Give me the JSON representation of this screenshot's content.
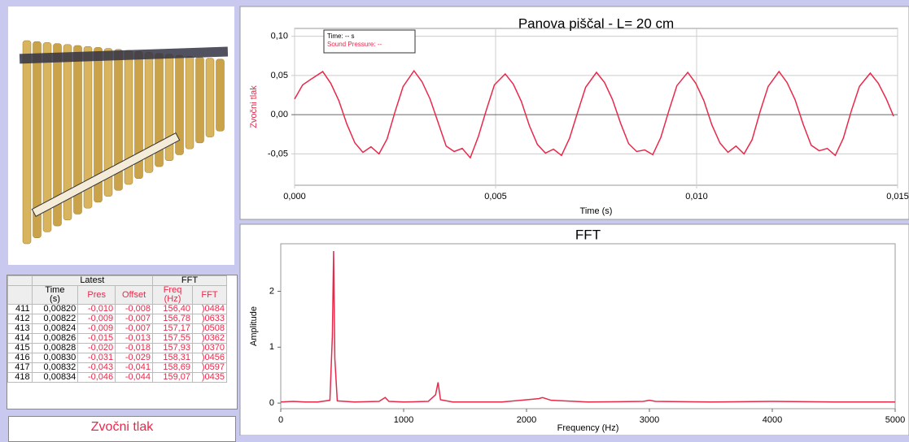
{
  "chart_data": [
    {
      "type": "line",
      "title": "Panova piščal - L= 20 cm",
      "x_label": "Time (s)",
      "y_label": "Zvočni tlak",
      "readout": [
        "Time: -- s",
        "Sound Pressure: --"
      ],
      "color": "#e8294a",
      "grid": true,
      "xlim": [
        0,
        0.015
      ],
      "xticks": [
        {
          "value": 0,
          "label": "0,000"
        },
        {
          "value": 0.005,
          "label": "0,005"
        },
        {
          "value": 0.01,
          "label": "0,010"
        },
        {
          "value": 0.015,
          "label": "0,015"
        }
      ],
      "ylim": [
        -0.09,
        0.11
      ],
      "yticks": [
        {
          "value": -0.05,
          "label": "-0,05"
        },
        {
          "value": 0,
          "label": "0,00"
        },
        {
          "value": 0.05,
          "label": "0,05"
        },
        {
          "value": 0.1,
          "label": "0,10"
        }
      ],
      "x": [
        0,
        0.0002,
        0.0004,
        0.0007,
        0.0009,
        0.0011,
        0.0013,
        0.0015,
        0.0017,
        0.0019,
        0.0021,
        0.0023,
        0.0025,
        0.0027,
        0.00297,
        0.00317,
        0.00337,
        0.00357,
        0.00377,
        0.00397,
        0.00417,
        0.00437,
        0.00457,
        0.00477,
        0.00497,
        0.00524,
        0.00544,
        0.00564,
        0.00584,
        0.00604,
        0.00624,
        0.00644,
        0.00664,
        0.00684,
        0.00704,
        0.00724,
        0.00751,
        0.00771,
        0.00791,
        0.00811,
        0.00831,
        0.00851,
        0.00871,
        0.00891,
        0.00911,
        0.00931,
        0.00951,
        0.00978,
        0.00998,
        0.01018,
        0.01038,
        0.01058,
        0.01078,
        0.01098,
        0.01118,
        0.01138,
        0.01158,
        0.01178,
        0.01205,
        0.01225,
        0.01245,
        0.01265,
        0.01285,
        0.01305,
        0.01325,
        0.01345,
        0.01365,
        0.01385,
        0.01405,
        0.01432,
        0.01452,
        0.01472,
        0.0149
      ],
      "values": [
        0.02,
        0.038,
        0.045,
        0.055,
        0.04,
        0.018,
        -0.012,
        -0.036,
        -0.048,
        -0.041,
        -0.05,
        -0.031,
        0.004,
        0.036,
        0.056,
        0.042,
        0.02,
        -0.01,
        -0.04,
        -0.047,
        -0.043,
        -0.055,
        -0.028,
        0.006,
        0.038,
        0.052,
        0.039,
        0.017,
        -0.014,
        -0.038,
        -0.049,
        -0.044,
        -0.052,
        -0.03,
        0.003,
        0.035,
        0.054,
        0.041,
        0.019,
        -0.011,
        -0.037,
        -0.047,
        -0.045,
        -0.051,
        -0.029,
        0.005,
        0.037,
        0.054,
        0.04,
        0.018,
        -0.013,
        -0.036,
        -0.048,
        -0.04,
        -0.05,
        -0.032,
        0.004,
        0.036,
        0.055,
        0.041,
        0.019,
        -0.012,
        -0.039,
        -0.046,
        -0.043,
        -0.052,
        -0.03,
        0.005,
        0.036,
        0.053,
        0.04,
        0.02,
        -0.002
      ]
    },
    {
      "type": "line",
      "title": "FFT",
      "x_label": "Frequency (Hz)",
      "y_label": "Amplitude",
      "color": "#e8294a",
      "grid": false,
      "xlim": [
        0,
        5000
      ],
      "xticks": [
        0,
        1000,
        2000,
        3000,
        4000,
        5000
      ],
      "ylim": [
        -0.1,
        2.85
      ],
      "yticks": [
        0,
        1,
        2
      ],
      "x": [
        0,
        100,
        200,
        300,
        400,
        420,
        430,
        440,
        460,
        600,
        800,
        850,
        880,
        1000,
        1200,
        1260,
        1280,
        1300,
        1400,
        1800,
        2100,
        2130,
        2200,
        2500,
        2950,
        3000,
        3050,
        3500,
        4000,
        4500,
        5000
      ],
      "values": [
        0.02,
        0.03,
        0.02,
        0.02,
        0.05,
        1.2,
        2.72,
        0.8,
        0.04,
        0.02,
        0.03,
        0.1,
        0.03,
        0.02,
        0.03,
        0.15,
        0.37,
        0.06,
        0.02,
        0.02,
        0.08,
        0.1,
        0.05,
        0.02,
        0.03,
        0.05,
        0.03,
        0.02,
        0.03,
        0.02,
        0.02
      ]
    }
  ],
  "table": {
    "groups": [
      "Latest",
      "FFT"
    ],
    "columns": [
      "Time\n(s)",
      "Pres",
      "Offset",
      "Freq\n(Hz)",
      "FFT"
    ],
    "rows": [
      [
        "411",
        "0,00820",
        "-0,010",
        "-0,008",
        "156,40",
        ")0484"
      ],
      [
        "412",
        "0,00822",
        "-0,009",
        "-0,007",
        "156,78",
        ")0633"
      ],
      [
        "413",
        "0,00824",
        "-0,009",
        "-0,007",
        "157,17",
        ")0508"
      ],
      [
        "414",
        "0,00826",
        "-0,015",
        "-0,013",
        "157,55",
        ")0362"
      ],
      [
        "415",
        "0,00828",
        "-0,020",
        "-0,018",
        "157,93",
        ")0370"
      ],
      [
        "416",
        "0,00830",
        "-0,031",
        "-0,029",
        "158,31",
        ")0456"
      ],
      [
        "417",
        "0,00832",
        "-0,043",
        "-0,041",
        "158,69",
        ")0597"
      ],
      [
        "418",
        "0,00834",
        "-0,046",
        "-0,044",
        "159,07",
        ")0435"
      ]
    ]
  },
  "meter_label": "Zvočni tlak"
}
